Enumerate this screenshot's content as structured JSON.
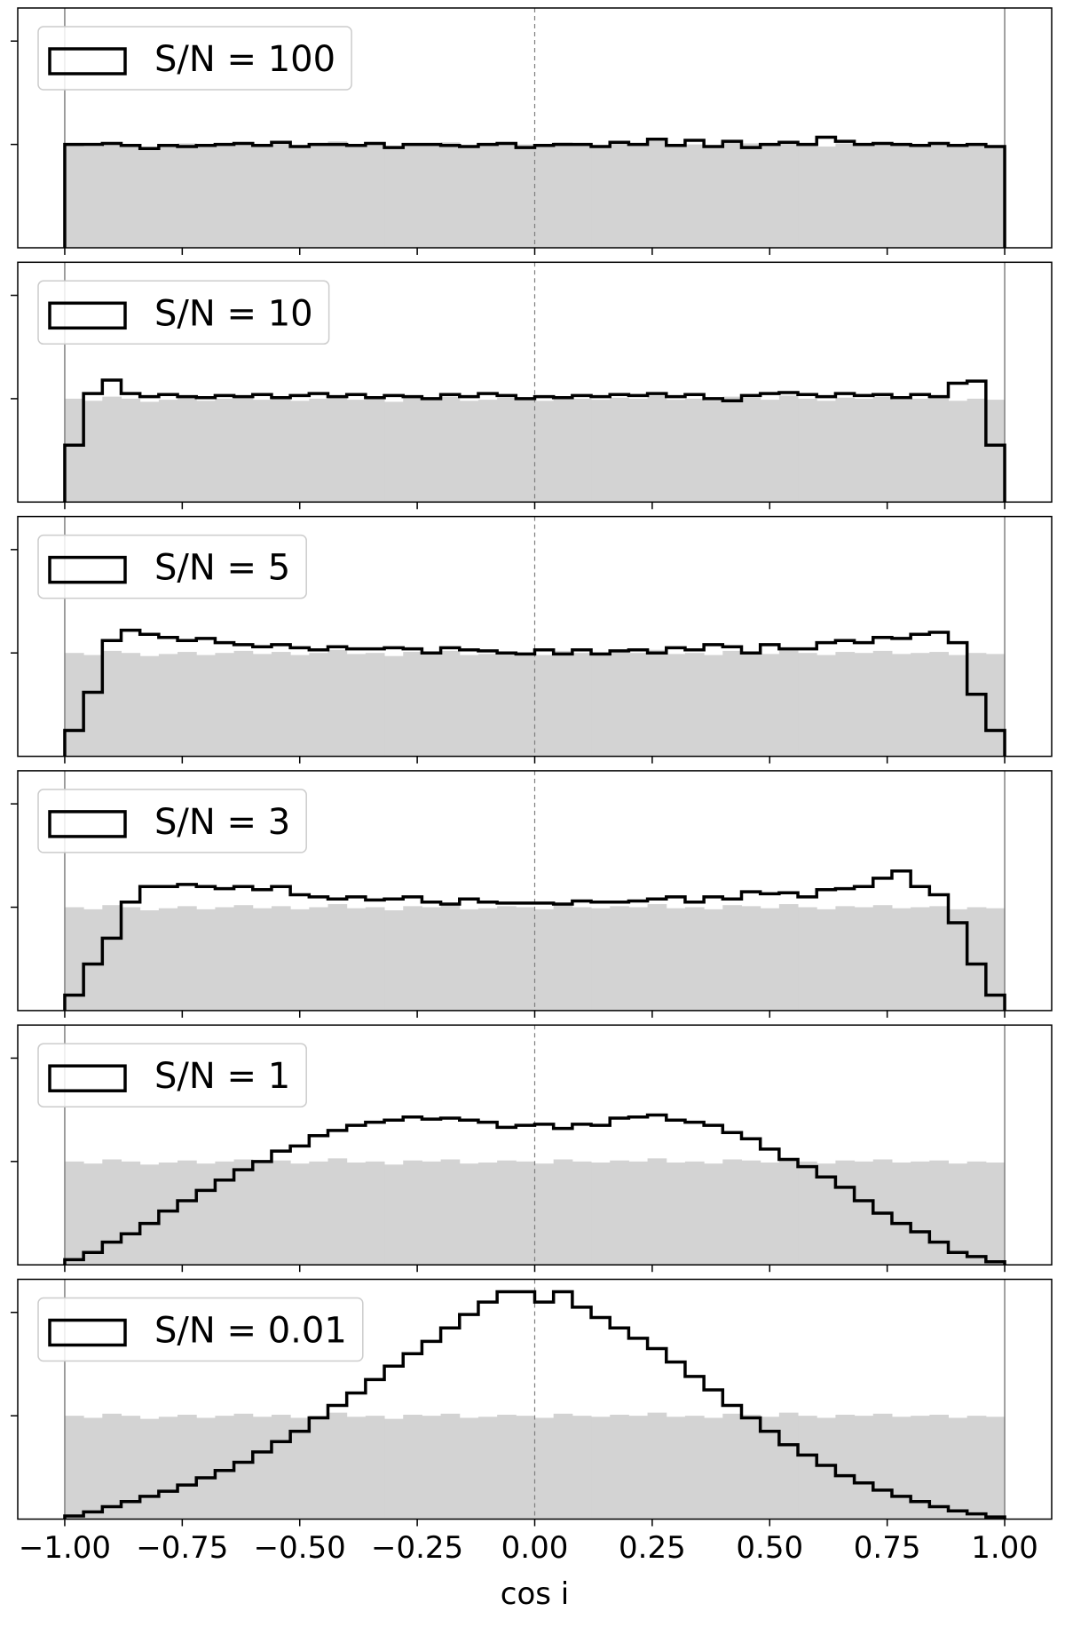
{
  "chart_data": [
    {
      "type": "histogram",
      "bins": [
        -1,
        -0.96,
        -0.92,
        -0.88,
        -0.84,
        -0.8,
        -0.76,
        -0.72,
        -0.68,
        -0.64,
        -0.6,
        -0.56,
        -0.52,
        -0.48,
        -0.44,
        -0.4,
        -0.36,
        -0.32,
        -0.28,
        -0.24,
        -0.2,
        -0.16,
        -0.12,
        -0.08,
        -0.04,
        0,
        0.04,
        0.08,
        0.12,
        0.16,
        0.2,
        0.24,
        0.28,
        0.32,
        0.36,
        0.4,
        0.44,
        0.48,
        0.52,
        0.56,
        0.6,
        0.64,
        0.68,
        0.72,
        0.76,
        0.8,
        0.84,
        0.88,
        0.92,
        0.96,
        1
      ],
      "series": [
        {
          "color": "#d3d3d3",
          "values": [
            1.0,
            0.98,
            1.02,
            1.0,
            0.97,
            0.99,
            1.01,
            0.98,
            1.0,
            1.02,
            0.99,
            1.01,
            0.98,
            1.0,
            1.03,
            0.99,
            1.0,
            0.97,
            1.01,
            1.0,
            1.02,
            0.98,
            0.99,
            1.01,
            1.0,
            0.98,
            1.02,
            1.0,
            0.99,
            1.01,
            1.0,
            1.03,
            0.99,
            1.0,
            0.98,
            1.02,
            1.01,
            0.99,
            1.03,
            1.0,
            0.98,
            1.01,
            1.0,
            1.02,
            0.99,
            1.0,
            1.01,
            0.98,
            1.0,
            0.99
          ]
        },
        {
          "name": "S/N = 100",
          "color": "#000000",
          "values": [
            1.0,
            1.0,
            1.01,
            0.99,
            0.96,
            0.99,
            0.98,
            0.99,
            1.0,
            1.01,
            0.99,
            1.02,
            0.98,
            1.0,
            1.0,
            0.99,
            1.01,
            0.97,
            1.0,
            1.0,
            0.99,
            0.98,
            1.0,
            1.01,
            0.97,
            0.99,
            1.0,
            1.0,
            0.98,
            1.02,
            1.0,
            1.05,
            0.99,
            1.04,
            0.98,
            1.03,
            0.97,
            1.0,
            1.02,
            1.0,
            1.07,
            1.03,
            1.0,
            1.01,
            1.0,
            0.99,
            1.01,
            0.99,
            1.0,
            0.98
          ]
        }
      ],
      "xlim": [
        -1.1,
        1.1
      ],
      "ylim": [
        0,
        2.32
      ],
      "yticks": [
        1,
        2
      ],
      "vlines": [
        -1,
        1
      ],
      "dashed_vline": 0
    },
    {
      "type": "histogram",
      "bins": [
        -1,
        -0.96,
        -0.92,
        -0.88,
        -0.84,
        -0.8,
        -0.76,
        -0.72,
        -0.68,
        -0.64,
        -0.6,
        -0.56,
        -0.52,
        -0.48,
        -0.44,
        -0.4,
        -0.36,
        -0.32,
        -0.28,
        -0.24,
        -0.2,
        -0.16,
        -0.12,
        -0.08,
        -0.04,
        0,
        0.04,
        0.08,
        0.12,
        0.16,
        0.2,
        0.24,
        0.28,
        0.32,
        0.36,
        0.4,
        0.44,
        0.48,
        0.52,
        0.56,
        0.6,
        0.64,
        0.68,
        0.72,
        0.76,
        0.8,
        0.84,
        0.88,
        0.92,
        0.96,
        1
      ],
      "series": [
        {
          "color": "#d3d3d3",
          "values": [
            1.0,
            0.98,
            1.02,
            1.0,
            0.97,
            0.99,
            1.01,
            0.98,
            1.0,
            1.02,
            0.99,
            1.01,
            0.98,
            1.0,
            1.03,
            0.99,
            1.0,
            0.97,
            1.01,
            1.0,
            1.02,
            0.98,
            0.99,
            1.01,
            1.0,
            0.98,
            1.02,
            1.0,
            0.99,
            1.01,
            1.0,
            1.03,
            0.99,
            1.0,
            0.98,
            1.02,
            1.01,
            0.99,
            1.03,
            1.0,
            0.98,
            1.01,
            1.0,
            1.02,
            0.99,
            1.0,
            1.01,
            0.98,
            1.0,
            0.99
          ]
        },
        {
          "name": "S/N = 10",
          "color": "#000000",
          "values": [
            0.55,
            1.05,
            1.18,
            1.05,
            1.02,
            1.04,
            1.02,
            1.01,
            1.03,
            1.02,
            1.04,
            1.01,
            1.03,
            1.05,
            1.02,
            1.04,
            1.01,
            1.03,
            1.02,
            1.0,
            1.04,
            1.02,
            1.05,
            1.03,
            1.0,
            1.02,
            1.01,
            1.03,
            1.02,
            1.04,
            1.03,
            1.05,
            1.02,
            1.04,
            1.0,
            0.98,
            1.03,
            1.05,
            1.06,
            1.04,
            1.02,
            1.05,
            1.03,
            1.04,
            1.01,
            1.04,
            1.02,
            1.15,
            1.17,
            0.55
          ]
        }
      ],
      "xlim": [
        -1.1,
        1.1
      ],
      "ylim": [
        0,
        2.32
      ],
      "yticks": [
        1,
        2
      ],
      "vlines": [
        -1,
        1
      ],
      "dashed_vline": 0
    },
    {
      "type": "histogram",
      "bins": [
        -1,
        -0.96,
        -0.92,
        -0.88,
        -0.84,
        -0.8,
        -0.76,
        -0.72,
        -0.68,
        -0.64,
        -0.6,
        -0.56,
        -0.52,
        -0.48,
        -0.44,
        -0.4,
        -0.36,
        -0.32,
        -0.28,
        -0.24,
        -0.2,
        -0.16,
        -0.12,
        -0.08,
        -0.04,
        0,
        0.04,
        0.08,
        0.12,
        0.16,
        0.2,
        0.24,
        0.28,
        0.32,
        0.36,
        0.4,
        0.44,
        0.48,
        0.52,
        0.56,
        0.6,
        0.64,
        0.68,
        0.72,
        0.76,
        0.8,
        0.84,
        0.88,
        0.92,
        0.96,
        1
      ],
      "series": [
        {
          "color": "#d3d3d3",
          "values": [
            1.0,
            0.98,
            1.02,
            1.0,
            0.97,
            0.99,
            1.01,
            0.98,
            1.0,
            1.02,
            0.99,
            1.01,
            0.98,
            1.0,
            1.03,
            0.99,
            1.0,
            0.97,
            1.01,
            1.0,
            1.02,
            0.98,
            0.99,
            1.01,
            1.0,
            0.98,
            1.02,
            1.0,
            0.99,
            1.01,
            1.0,
            1.03,
            0.99,
            1.0,
            0.98,
            1.02,
            1.01,
            0.99,
            1.03,
            1.0,
            0.98,
            1.01,
            1.0,
            1.02,
            0.99,
            1.0,
            1.01,
            0.98,
            1.0,
            0.99
          ]
        },
        {
          "name": "S/N = 5",
          "color": "#000000",
          "values": [
            0.25,
            0.62,
            1.12,
            1.22,
            1.18,
            1.15,
            1.12,
            1.14,
            1.1,
            1.08,
            1.06,
            1.08,
            1.05,
            1.03,
            1.06,
            1.04,
            1.04,
            1.05,
            1.04,
            1.0,
            1.05,
            1.03,
            1.02,
            1.0,
            0.99,
            1.03,
            0.99,
            1.03,
            0.99,
            1.02,
            1.03,
            1.0,
            1.05,
            1.03,
            1.08,
            1.06,
            1.0,
            1.08,
            1.04,
            1.04,
            1.1,
            1.12,
            1.1,
            1.15,
            1.14,
            1.18,
            1.2,
            1.1,
            0.6,
            0.25
          ]
        }
      ],
      "xlim": [
        -1.1,
        1.1
      ],
      "ylim": [
        0,
        2.32
      ],
      "yticks": [
        1,
        2
      ],
      "vlines": [
        -1,
        1
      ],
      "dashed_vline": 0
    },
    {
      "type": "histogram",
      "bins": [
        -1,
        -0.96,
        -0.92,
        -0.88,
        -0.84,
        -0.8,
        -0.76,
        -0.72,
        -0.68,
        -0.64,
        -0.6,
        -0.56,
        -0.52,
        -0.48,
        -0.44,
        -0.4,
        -0.36,
        -0.32,
        -0.28,
        -0.24,
        -0.2,
        -0.16,
        -0.12,
        -0.08,
        -0.04,
        0,
        0.04,
        0.08,
        0.12,
        0.16,
        0.2,
        0.24,
        0.28,
        0.32,
        0.36,
        0.4,
        0.44,
        0.48,
        0.52,
        0.56,
        0.6,
        0.64,
        0.68,
        0.72,
        0.76,
        0.8,
        0.84,
        0.88,
        0.92,
        0.96,
        1
      ],
      "series": [
        {
          "color": "#d3d3d3",
          "values": [
            1.0,
            0.98,
            1.02,
            1.0,
            0.97,
            0.99,
            1.01,
            0.98,
            1.0,
            1.02,
            0.99,
            1.01,
            0.98,
            1.0,
            1.03,
            0.99,
            1.0,
            0.97,
            1.01,
            1.0,
            1.02,
            0.98,
            0.99,
            1.01,
            1.0,
            0.98,
            1.02,
            1.0,
            0.99,
            1.01,
            1.0,
            1.03,
            0.99,
            1.0,
            0.98,
            1.02,
            1.01,
            0.99,
            1.03,
            1.0,
            0.98,
            1.01,
            1.0,
            1.02,
            0.99,
            1.0,
            1.01,
            0.98,
            1.0,
            0.99
          ]
        },
        {
          "name": "S/N = 3",
          "color": "#000000",
          "values": [
            0.15,
            0.45,
            0.7,
            1.05,
            1.2,
            1.2,
            1.22,
            1.2,
            1.18,
            1.2,
            1.17,
            1.2,
            1.12,
            1.1,
            1.08,
            1.1,
            1.07,
            1.08,
            1.1,
            1.05,
            1.03,
            1.08,
            1.05,
            1.04,
            1.04,
            1.04,
            1.03,
            1.06,
            1.05,
            1.05,
            1.06,
            1.08,
            1.1,
            1.05,
            1.1,
            1.08,
            1.15,
            1.13,
            1.14,
            1.1,
            1.17,
            1.18,
            1.2,
            1.28,
            1.35,
            1.2,
            1.12,
            0.85,
            0.45,
            0.15
          ]
        }
      ],
      "xlim": [
        -1.1,
        1.1
      ],
      "ylim": [
        0,
        2.32
      ],
      "yticks": [
        1,
        2
      ],
      "vlines": [
        -1,
        1
      ],
      "dashed_vline": 0
    },
    {
      "type": "histogram",
      "bins": [
        -1,
        -0.96,
        -0.92,
        -0.88,
        -0.84,
        -0.8,
        -0.76,
        -0.72,
        -0.68,
        -0.64,
        -0.6,
        -0.56,
        -0.52,
        -0.48,
        -0.44,
        -0.4,
        -0.36,
        -0.32,
        -0.28,
        -0.24,
        -0.2,
        -0.16,
        -0.12,
        -0.08,
        -0.04,
        0,
        0.04,
        0.08,
        0.12,
        0.16,
        0.2,
        0.24,
        0.28,
        0.32,
        0.36,
        0.4,
        0.44,
        0.48,
        0.52,
        0.56,
        0.6,
        0.64,
        0.68,
        0.72,
        0.76,
        0.8,
        0.84,
        0.88,
        0.92,
        0.96,
        1
      ],
      "series": [
        {
          "color": "#d3d3d3",
          "values": [
            1.0,
            0.98,
            1.02,
            1.0,
            0.97,
            0.99,
            1.01,
            0.98,
            1.0,
            1.02,
            0.99,
            1.01,
            0.98,
            1.0,
            1.03,
            0.99,
            1.0,
            0.97,
            1.01,
            1.0,
            1.02,
            0.98,
            0.99,
            1.01,
            1.0,
            0.98,
            1.02,
            1.0,
            0.99,
            1.01,
            1.0,
            1.03,
            0.99,
            1.0,
            0.98,
            1.02,
            1.01,
            0.99,
            1.03,
            1.0,
            0.98,
            1.01,
            1.0,
            1.02,
            0.99,
            1.0,
            1.01,
            0.98,
            1.0,
            0.99
          ]
        },
        {
          "name": "S/N = 1",
          "color": "#000000",
          "values": [
            0.05,
            0.12,
            0.22,
            0.3,
            0.4,
            0.52,
            0.62,
            0.72,
            0.82,
            0.92,
            1.0,
            1.1,
            1.15,
            1.25,
            1.3,
            1.35,
            1.38,
            1.4,
            1.43,
            1.41,
            1.42,
            1.4,
            1.38,
            1.33,
            1.35,
            1.36,
            1.32,
            1.36,
            1.35,
            1.42,
            1.43,
            1.45,
            1.4,
            1.38,
            1.35,
            1.28,
            1.22,
            1.12,
            1.02,
            0.95,
            0.85,
            0.75,
            0.62,
            0.5,
            0.4,
            0.32,
            0.22,
            0.12,
            0.08,
            0.03
          ]
        }
      ],
      "xlim": [
        -1.1,
        1.1
      ],
      "ylim": [
        0,
        2.32
      ],
      "yticks": [
        1,
        2
      ],
      "vlines": [
        -1,
        1
      ],
      "dashed_vline": 0
    },
    {
      "type": "histogram",
      "bins": [
        -1,
        -0.96,
        -0.92,
        -0.88,
        -0.84,
        -0.8,
        -0.76,
        -0.72,
        -0.68,
        -0.64,
        -0.6,
        -0.56,
        -0.52,
        -0.48,
        -0.44,
        -0.4,
        -0.36,
        -0.32,
        -0.28,
        -0.24,
        -0.2,
        -0.16,
        -0.12,
        -0.08,
        -0.04,
        0,
        0.04,
        0.08,
        0.12,
        0.16,
        0.2,
        0.24,
        0.28,
        0.32,
        0.36,
        0.4,
        0.44,
        0.48,
        0.52,
        0.56,
        0.6,
        0.64,
        0.68,
        0.72,
        0.76,
        0.8,
        0.84,
        0.88,
        0.92,
        0.96,
        1
      ],
      "series": [
        {
          "color": "#d3d3d3",
          "values": [
            1.0,
            0.98,
            1.02,
            1.0,
            0.97,
            0.99,
            1.01,
            0.98,
            1.0,
            1.02,
            0.99,
            1.01,
            0.98,
            1.0,
            1.03,
            0.99,
            1.0,
            0.97,
            1.01,
            1.0,
            1.02,
            0.98,
            0.99,
            1.01,
            1.0,
            0.98,
            1.02,
            1.0,
            0.99,
            1.01,
            1.0,
            1.03,
            0.99,
            1.0,
            0.98,
            1.02,
            1.01,
            0.99,
            1.03,
            1.0,
            0.98,
            1.01,
            1.0,
            1.02,
            0.99,
            1.0,
            1.01,
            0.98,
            1.0,
            0.99
          ]
        },
        {
          "name": "S/N = 0.01",
          "color": "#000000",
          "values": [
            0.03,
            0.07,
            0.12,
            0.17,
            0.22,
            0.27,
            0.33,
            0.4,
            0.47,
            0.55,
            0.65,
            0.75,
            0.85,
            0.98,
            1.1,
            1.22,
            1.35,
            1.48,
            1.6,
            1.72,
            1.85,
            1.98,
            2.1,
            2.2,
            2.2,
            2.1,
            2.2,
            2.05,
            1.95,
            1.85,
            1.75,
            1.65,
            1.52,
            1.38,
            1.25,
            1.1,
            0.98,
            0.85,
            0.72,
            0.62,
            0.52,
            0.42,
            0.35,
            0.28,
            0.22,
            0.17,
            0.12,
            0.08,
            0.05,
            0.02
          ]
        }
      ],
      "xlim": [
        -1.1,
        1.1
      ],
      "ylim": [
        0,
        2.32
      ],
      "yticks": [
        1,
        2
      ],
      "vlines": [
        -1,
        1
      ],
      "dashed_vline": 0,
      "xticks": [
        {
          "value": -1,
          "label": "−1.00"
        },
        {
          "value": -0.75,
          "label": "−0.75"
        },
        {
          "value": -0.5,
          "label": "−0.50"
        },
        {
          "value": -0.25,
          "label": "−0.25"
        },
        {
          "value": 0,
          "label": "0.00"
        },
        {
          "value": 0.25,
          "label": "0.25"
        },
        {
          "value": 0.5,
          "label": "0.50"
        },
        {
          "value": 0.75,
          "label": "0.75"
        },
        {
          "value": 1,
          "label": "1.00"
        }
      ],
      "xlabel": "cos i"
    }
  ]
}
